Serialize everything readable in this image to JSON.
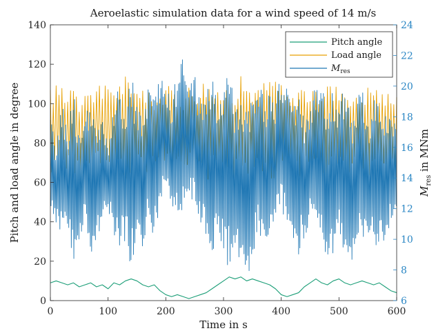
{
  "chart_data": {
    "type": "line",
    "title": "Aeroelastic simulation data for a wind speed of 14 m/s",
    "xlabel": "Time in s",
    "ylabel_left": "Pitch and load angle in degree",
    "ylabel_right_main": "M",
    "ylabel_right_sub": "res",
    "ylabel_right_unit": " in MNm",
    "xlim": [
      0,
      600
    ],
    "ylim_left": [
      0,
      140
    ],
    "ylim_right": [
      6,
      24
    ],
    "xticks": [
      "0",
      "100",
      "200",
      "300",
      "400",
      "500",
      "600"
    ],
    "yticks_left": [
      "0",
      "20",
      "40",
      "60",
      "80",
      "100",
      "120",
      "140"
    ],
    "yticks_right": [
      "6",
      "8",
      "10",
      "12",
      "14",
      "16",
      "18",
      "20",
      "22",
      "24"
    ],
    "grid": false,
    "legend_position": "top-right",
    "legend": [
      {
        "key": "pitch",
        "label": "Pitch angle",
        "color": "#1b9e77"
      },
      {
        "key": "load",
        "label": "Load angle",
        "color": "#e69f00"
      },
      {
        "key": "mres",
        "label_main": "M",
        "label_sub": "res",
        "color": "#1f77b4"
      }
    ],
    "series": [
      {
        "key": "pitch",
        "axis": "left",
        "color": "#1b9e77",
        "x": [
          0,
          10,
          20,
          30,
          40,
          50,
          60,
          70,
          80,
          90,
          100,
          110,
          120,
          130,
          140,
          150,
          160,
          170,
          180,
          190,
          200,
          210,
          220,
          230,
          240,
          250,
          260,
          270,
          280,
          290,
          300,
          310,
          320,
          330,
          340,
          350,
          360,
          370,
          380,
          390,
          400,
          410,
          420,
          430,
          440,
          450,
          460,
          470,
          480,
          490,
          500,
          510,
          520,
          530,
          540,
          550,
          560,
          570,
          580,
          590,
          600
        ],
        "values": [
          9,
          10,
          9,
          8,
          9,
          7,
          8,
          9,
          7,
          8,
          6,
          9,
          8,
          10,
          11,
          10,
          8,
          7,
          8,
          5,
          3,
          2,
          3,
          2,
          1,
          2,
          3,
          4,
          6,
          8,
          10,
          12,
          11,
          12,
          10,
          11,
          10,
          9,
          8,
          6,
          3,
          2,
          3,
          4,
          7,
          9,
          11,
          9,
          8,
          10,
          11,
          9,
          8,
          9,
          10,
          9,
          8,
          9,
          7,
          5,
          4
        ]
      },
      {
        "key": "load",
        "axis": "left",
        "color": "#e69f00",
        "x": [
          0,
          10,
          20,
          30,
          40,
          50,
          60,
          70,
          80,
          90,
          100,
          110,
          120,
          130,
          140,
          150,
          160,
          170,
          180,
          190,
          200,
          210,
          220,
          230,
          240,
          250,
          260,
          270,
          280,
          290,
          300,
          310,
          320,
          330,
          340,
          350,
          360,
          370,
          380,
          390,
          400,
          410,
          420,
          430,
          440,
          450,
          460,
          470,
          480,
          490,
          500,
          510,
          520,
          530,
          540,
          550,
          560,
          570,
          580,
          590,
          600
        ],
        "high": [
          108,
          110,
          112,
          106,
          118,
          104,
          110,
          107,
          112,
          106,
          114,
          110,
          112,
          116,
          108,
          112,
          110,
          106,
          104,
          106,
          108,
          110,
          106,
          104,
          110,
          108,
          112,
          114,
          110,
          106,
          108,
          112,
          110,
          114,
          112,
          110,
          108,
          112,
          114,
          116,
          110,
          106,
          104,
          112,
          110,
          108,
          106,
          110,
          114,
          108,
          112,
          110,
          108,
          104,
          106,
          110,
          112,
          108,
          104,
          110,
          108
        ],
        "low": [
          64,
          66,
          62,
          68,
          60,
          66,
          62,
          64,
          68,
          62,
          64,
          66,
          62,
          60,
          64,
          68,
          66,
          64,
          70,
          72,
          68,
          66,
          72,
          70,
          66,
          68,
          62,
          60,
          64,
          66,
          68,
          62,
          60,
          64,
          62,
          66,
          68,
          64,
          60,
          62,
          66,
          68,
          70,
          62,
          64,
          66,
          68,
          62,
          60,
          66,
          64,
          62,
          66,
          70,
          68,
          64,
          62,
          66,
          70,
          64,
          62
        ]
      },
      {
        "key": "mres",
        "axis": "right",
        "color": "#1f77b4",
        "x": [
          0,
          10,
          20,
          30,
          40,
          50,
          60,
          70,
          80,
          90,
          100,
          110,
          120,
          130,
          140,
          150,
          160,
          170,
          180,
          190,
          200,
          210,
          220,
          230,
          240,
          250,
          260,
          270,
          280,
          290,
          300,
          310,
          320,
          330,
          340,
          350,
          360,
          370,
          380,
          390,
          400,
          410,
          420,
          430,
          440,
          450,
          460,
          470,
          480,
          490,
          500,
          510,
          520,
          530,
          540,
          550,
          560,
          570,
          580,
          590,
          600
        ],
        "high": [
          18,
          16,
          19,
          17,
          20,
          17,
          18,
          19,
          17,
          18,
          16,
          19,
          20,
          18,
          21,
          19,
          18,
          20,
          19,
          21,
          20,
          19,
          21,
          22,
          20,
          21,
          19,
          20,
          21,
          19,
          20,
          21,
          19,
          20,
          19,
          20,
          21,
          19,
          20,
          19,
          21,
          20,
          19,
          20,
          18,
          19,
          20,
          21,
          19,
          20,
          19,
          20,
          18,
          19,
          20,
          18,
          19,
          20,
          18,
          19,
          17
        ],
        "low": [
          12,
          11,
          10,
          11,
          8,
          10,
          11,
          9,
          10,
          11,
          12,
          10,
          9,
          10,
          8,
          10,
          9,
          11,
          10,
          12,
          13,
          12,
          11,
          12,
          13,
          12,
          11,
          10,
          9,
          10,
          9,
          8,
          9,
          8,
          7,
          9,
          10,
          9,
          10,
          11,
          12,
          11,
          10,
          9,
          10,
          11,
          10,
          9,
          8,
          9,
          10,
          9,
          8,
          9,
          10,
          9,
          10,
          9,
          10,
          11,
          12
        ]
      }
    ]
  }
}
